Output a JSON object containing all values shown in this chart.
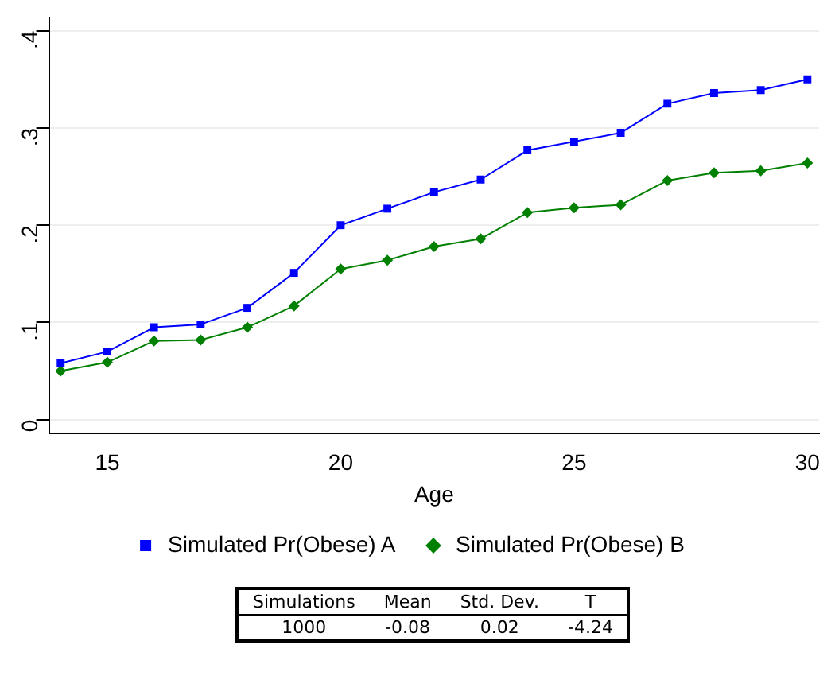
{
  "chart_data": {
    "type": "line",
    "xlabel": "Age",
    "x": [
      14,
      15,
      16,
      17,
      18,
      19,
      20,
      21,
      22,
      23,
      24,
      25,
      26,
      27,
      28,
      29,
      30
    ],
    "series": [
      {
        "name": "Simulated Pr(Obese) A",
        "color": "#0000ff",
        "marker": "square",
        "values": [
          0.058,
          0.07,
          0.095,
          0.098,
          0.115,
          0.151,
          0.2,
          0.217,
          0.234,
          0.247,
          0.277,
          0.286,
          0.295,
          0.325,
          0.336,
          0.339,
          0.35
        ]
      },
      {
        "name": "Simulated Pr(Obese) B",
        "color": "#008000",
        "marker": "diamond",
        "values": [
          0.05,
          0.059,
          0.081,
          0.082,
          0.095,
          0.117,
          0.155,
          0.164,
          0.178,
          0.186,
          0.213,
          0.218,
          0.221,
          0.246,
          0.254,
          0.256,
          0.264
        ]
      }
    ],
    "xlim": [
      13.75,
      30.25
    ],
    "xticks": [
      15,
      20,
      25,
      30
    ],
    "ylim": [
      -0.014,
      0.413
    ],
    "yticks": [
      0,
      {
        "value": 0.1,
        "label": ".1"
      },
      {
        "value": 0.2,
        "label": ".2"
      },
      {
        "value": 0.3,
        "label": ".3"
      },
      {
        "value": 0.4,
        "label": ".4"
      }
    ],
    "grid": "y",
    "legend": "bottom",
    "line_style": "solid",
    "annotations": [
      "Simulations",
      "Mean",
      "Std. Dev.",
      "T",
      "1000",
      "-0.08",
      "0.02",
      "-4.24"
    ]
  }
}
